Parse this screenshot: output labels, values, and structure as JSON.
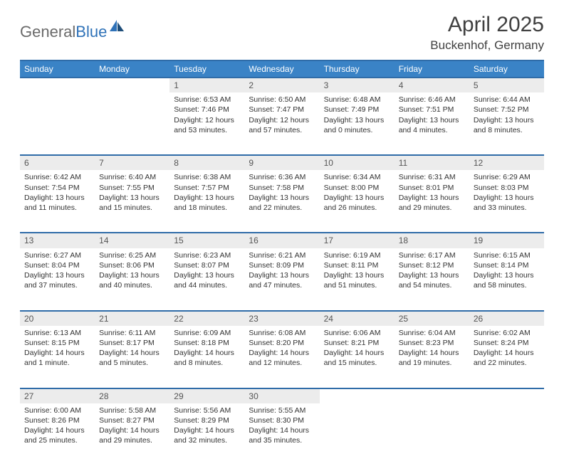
{
  "logo": {
    "part1": "General",
    "part2": "Blue"
  },
  "title": "April 2025",
  "location": "Buckenhof, Germany",
  "colors": {
    "header_bg": "#3a83c6",
    "header_border": "#2f6ca8",
    "daynum_bg": "#ececec",
    "text": "#333333",
    "logo_gray": "#6a6a6a",
    "logo_blue": "#2f72b8"
  },
  "weekdays": [
    "Sunday",
    "Monday",
    "Tuesday",
    "Wednesday",
    "Thursday",
    "Friday",
    "Saturday"
  ],
  "weeks": [
    {
      "nums": [
        "",
        "",
        "1",
        "2",
        "3",
        "4",
        "5"
      ],
      "cells": [
        null,
        null,
        {
          "sunrise": "Sunrise: 6:53 AM",
          "sunset": "Sunset: 7:46 PM",
          "daylight": "Daylight: 12 hours and 53 minutes."
        },
        {
          "sunrise": "Sunrise: 6:50 AM",
          "sunset": "Sunset: 7:47 PM",
          "daylight": "Daylight: 12 hours and 57 minutes."
        },
        {
          "sunrise": "Sunrise: 6:48 AM",
          "sunset": "Sunset: 7:49 PM",
          "daylight": "Daylight: 13 hours and 0 minutes."
        },
        {
          "sunrise": "Sunrise: 6:46 AM",
          "sunset": "Sunset: 7:51 PM",
          "daylight": "Daylight: 13 hours and 4 minutes."
        },
        {
          "sunrise": "Sunrise: 6:44 AM",
          "sunset": "Sunset: 7:52 PM",
          "daylight": "Daylight: 13 hours and 8 minutes."
        }
      ]
    },
    {
      "nums": [
        "6",
        "7",
        "8",
        "9",
        "10",
        "11",
        "12"
      ],
      "cells": [
        {
          "sunrise": "Sunrise: 6:42 AM",
          "sunset": "Sunset: 7:54 PM",
          "daylight": "Daylight: 13 hours and 11 minutes."
        },
        {
          "sunrise": "Sunrise: 6:40 AM",
          "sunset": "Sunset: 7:55 PM",
          "daylight": "Daylight: 13 hours and 15 minutes."
        },
        {
          "sunrise": "Sunrise: 6:38 AM",
          "sunset": "Sunset: 7:57 PM",
          "daylight": "Daylight: 13 hours and 18 minutes."
        },
        {
          "sunrise": "Sunrise: 6:36 AM",
          "sunset": "Sunset: 7:58 PM",
          "daylight": "Daylight: 13 hours and 22 minutes."
        },
        {
          "sunrise": "Sunrise: 6:34 AM",
          "sunset": "Sunset: 8:00 PM",
          "daylight": "Daylight: 13 hours and 26 minutes."
        },
        {
          "sunrise": "Sunrise: 6:31 AM",
          "sunset": "Sunset: 8:01 PM",
          "daylight": "Daylight: 13 hours and 29 minutes."
        },
        {
          "sunrise": "Sunrise: 6:29 AM",
          "sunset": "Sunset: 8:03 PM",
          "daylight": "Daylight: 13 hours and 33 minutes."
        }
      ]
    },
    {
      "nums": [
        "13",
        "14",
        "15",
        "16",
        "17",
        "18",
        "19"
      ],
      "cells": [
        {
          "sunrise": "Sunrise: 6:27 AM",
          "sunset": "Sunset: 8:04 PM",
          "daylight": "Daylight: 13 hours and 37 minutes."
        },
        {
          "sunrise": "Sunrise: 6:25 AM",
          "sunset": "Sunset: 8:06 PM",
          "daylight": "Daylight: 13 hours and 40 minutes."
        },
        {
          "sunrise": "Sunrise: 6:23 AM",
          "sunset": "Sunset: 8:07 PM",
          "daylight": "Daylight: 13 hours and 44 minutes."
        },
        {
          "sunrise": "Sunrise: 6:21 AM",
          "sunset": "Sunset: 8:09 PM",
          "daylight": "Daylight: 13 hours and 47 minutes."
        },
        {
          "sunrise": "Sunrise: 6:19 AM",
          "sunset": "Sunset: 8:11 PM",
          "daylight": "Daylight: 13 hours and 51 minutes."
        },
        {
          "sunrise": "Sunrise: 6:17 AM",
          "sunset": "Sunset: 8:12 PM",
          "daylight": "Daylight: 13 hours and 54 minutes."
        },
        {
          "sunrise": "Sunrise: 6:15 AM",
          "sunset": "Sunset: 8:14 PM",
          "daylight": "Daylight: 13 hours and 58 minutes."
        }
      ]
    },
    {
      "nums": [
        "20",
        "21",
        "22",
        "23",
        "24",
        "25",
        "26"
      ],
      "cells": [
        {
          "sunrise": "Sunrise: 6:13 AM",
          "sunset": "Sunset: 8:15 PM",
          "daylight": "Daylight: 14 hours and 1 minute."
        },
        {
          "sunrise": "Sunrise: 6:11 AM",
          "sunset": "Sunset: 8:17 PM",
          "daylight": "Daylight: 14 hours and 5 minutes."
        },
        {
          "sunrise": "Sunrise: 6:09 AM",
          "sunset": "Sunset: 8:18 PM",
          "daylight": "Daylight: 14 hours and 8 minutes."
        },
        {
          "sunrise": "Sunrise: 6:08 AM",
          "sunset": "Sunset: 8:20 PM",
          "daylight": "Daylight: 14 hours and 12 minutes."
        },
        {
          "sunrise": "Sunrise: 6:06 AM",
          "sunset": "Sunset: 8:21 PM",
          "daylight": "Daylight: 14 hours and 15 minutes."
        },
        {
          "sunrise": "Sunrise: 6:04 AM",
          "sunset": "Sunset: 8:23 PM",
          "daylight": "Daylight: 14 hours and 19 minutes."
        },
        {
          "sunrise": "Sunrise: 6:02 AM",
          "sunset": "Sunset: 8:24 PM",
          "daylight": "Daylight: 14 hours and 22 minutes."
        }
      ]
    },
    {
      "nums": [
        "27",
        "28",
        "29",
        "30",
        "",
        "",
        ""
      ],
      "cells": [
        {
          "sunrise": "Sunrise: 6:00 AM",
          "sunset": "Sunset: 8:26 PM",
          "daylight": "Daylight: 14 hours and 25 minutes."
        },
        {
          "sunrise": "Sunrise: 5:58 AM",
          "sunset": "Sunset: 8:27 PM",
          "daylight": "Daylight: 14 hours and 29 minutes."
        },
        {
          "sunrise": "Sunrise: 5:56 AM",
          "sunset": "Sunset: 8:29 PM",
          "daylight": "Daylight: 14 hours and 32 minutes."
        },
        {
          "sunrise": "Sunrise: 5:55 AM",
          "sunset": "Sunset: 8:30 PM",
          "daylight": "Daylight: 14 hours and 35 minutes."
        },
        null,
        null,
        null
      ]
    }
  ]
}
